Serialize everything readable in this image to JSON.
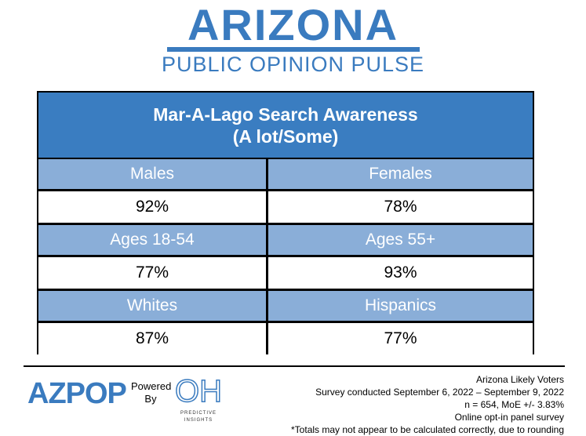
{
  "header": {
    "logo_title": "ARIZONA",
    "logo_subtitle": "PUBLIC OPINION PULSE"
  },
  "colors": {
    "title_bg": "#3a7dc1",
    "group_header_bg": "#8aaed8",
    "brand_blue": "#3a7bbf"
  },
  "chart_data": {
    "type": "table",
    "title": "Mar-A-Lago Search Awareness",
    "subtitle": "(A lot/Some)",
    "rows": [
      {
        "left_label": "Males",
        "left_value": "92%",
        "right_label": "Females",
        "right_value": "78%"
      },
      {
        "left_label": "Ages 18-54",
        "left_value": "77%",
        "right_label": "Ages 55+",
        "right_value": "93%"
      },
      {
        "left_label": "Whites",
        "left_value": "87%",
        "right_label": "Hispanics",
        "right_value": "77%"
      }
    ],
    "values": {
      "Males": 92,
      "Females": 78,
      "Ages 18-54": 77,
      "Ages 55+": 93,
      "Whites": 87,
      "Hispanics": 77
    }
  },
  "footer": {
    "azpop_logo_text": "AZPOP",
    "powered_by": [
      "Powered",
      "By"
    ],
    "oh_logo_text": "OH",
    "oh_logo_caption": [
      "PREDICTIVE",
      "INSIGHTS"
    ],
    "notes": [
      "Arizona Likely Voters",
      "Survey conducted September 6, 2022 – September 9, 2022",
      "n = 654, MoE +/- 3.83%",
      "Online opt-in panel survey",
      "*Totals may not appear to be calculated correctly, due to rounding"
    ]
  }
}
